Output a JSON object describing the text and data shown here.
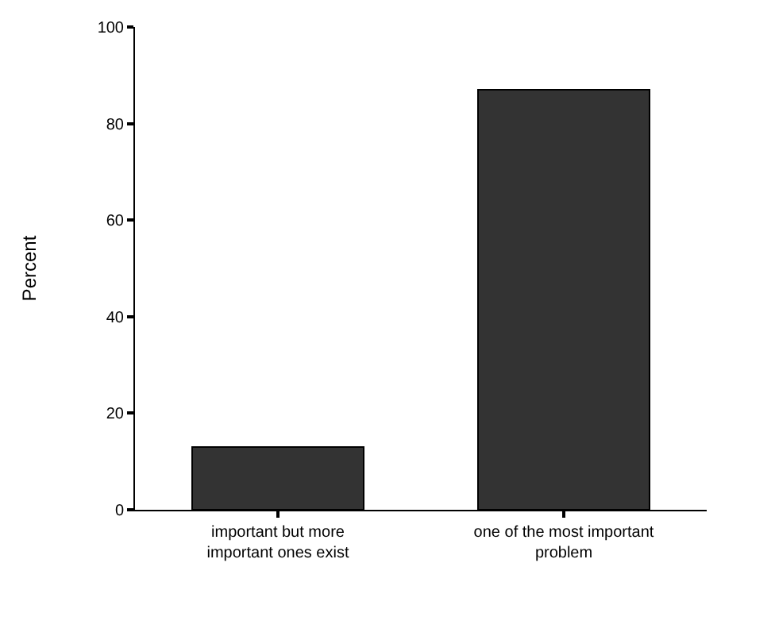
{
  "chart_data": {
    "type": "bar",
    "ylabel": "Percent",
    "categories": [
      "important but more important ones exist",
      "one of the most important problem"
    ],
    "values": [
      13,
      87
    ],
    "color": "#333333",
    "ylim": [
      0,
      100
    ],
    "yticks": [
      0,
      20,
      40,
      60,
      80,
      100
    ]
  }
}
